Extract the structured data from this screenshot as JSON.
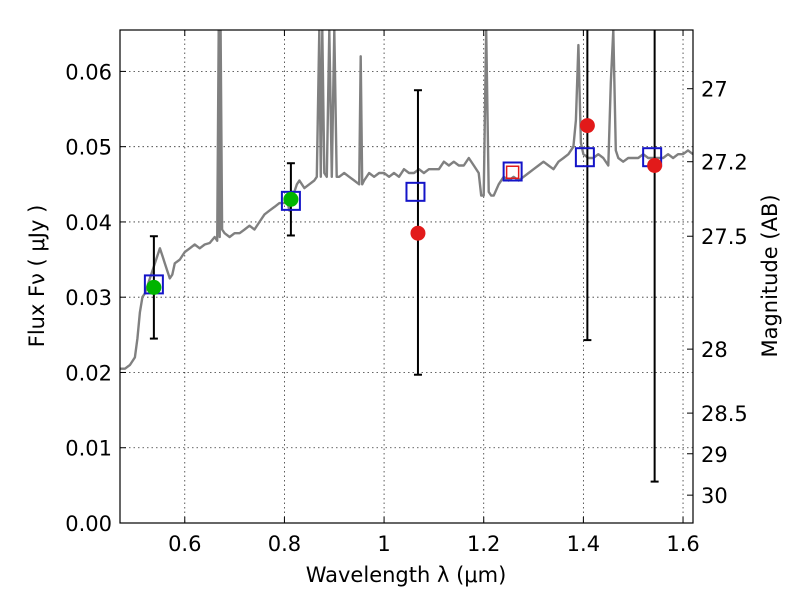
{
  "chart_data": {
    "type": "scatter",
    "title": "",
    "xlabel": "Wavelength  λ (μm)",
    "ylabel": "Flux  Fν  ( μJy )",
    "ylabel_right": "Magnitude (AB)",
    "xlim": [
      0.47,
      1.62
    ],
    "ylim": [
      0.0,
      0.0655
    ],
    "grid": true,
    "x_ticks": [
      0.6,
      0.8,
      1.0,
      1.2,
      1.4,
      1.6
    ],
    "x_tick_labels": [
      "0.6",
      "0.8",
      "1",
      "1.2",
      "1.4",
      "1.6"
    ],
    "y_ticks": [
      0.0,
      0.01,
      0.02,
      0.03,
      0.04,
      0.05,
      0.06
    ],
    "y_tick_labels": [
      "0.00",
      "0.01",
      "0.02",
      "0.03",
      "0.04",
      "0.05",
      "0.06"
    ],
    "right_axis": {
      "ticks_flux": [
        0.0577,
        0.048,
        0.0381,
        0.0231,
        0.0146,
        0.0092,
        0.0037
      ],
      "tick_labels": [
        "27",
        "27.2",
        "27.5",
        "28",
        "28.5",
        "29",
        "30"
      ]
    },
    "series": [
      {
        "name": "model spectrum",
        "kind": "line",
        "color": "#808080",
        "x": [
          0.47,
          0.48,
          0.49,
          0.5,
          0.505,
          0.51,
          0.515,
          0.52,
          0.525,
          0.53,
          0.535,
          0.54,
          0.545,
          0.55,
          0.555,
          0.56,
          0.565,
          0.57,
          0.575,
          0.58,
          0.59,
          0.6,
          0.61,
          0.62,
          0.63,
          0.64,
          0.65,
          0.66,
          0.665,
          0.668,
          0.67,
          0.672,
          0.675,
          0.68,
          0.69,
          0.7,
          0.71,
          0.72,
          0.73,
          0.74,
          0.75,
          0.76,
          0.77,
          0.78,
          0.79,
          0.8,
          0.805,
          0.81,
          0.815,
          0.82,
          0.825,
          0.83,
          0.84,
          0.85,
          0.86,
          0.865,
          0.87,
          0.873,
          0.876,
          0.88,
          0.885,
          0.89,
          0.895,
          0.9,
          0.905,
          0.91,
          0.92,
          0.93,
          0.94,
          0.95,
          0.953,
          0.956,
          0.96,
          0.97,
          0.98,
          0.99,
          1.0,
          1.01,
          1.02,
          1.03,
          1.04,
          1.05,
          1.06,
          1.07,
          1.08,
          1.09,
          1.1,
          1.11,
          1.12,
          1.13,
          1.14,
          1.15,
          1.16,
          1.17,
          1.18,
          1.19,
          1.195,
          1.2,
          1.205,
          1.21,
          1.215,
          1.22,
          1.23,
          1.24,
          1.25,
          1.26,
          1.27,
          1.28,
          1.29,
          1.3,
          1.31,
          1.32,
          1.33,
          1.34,
          1.35,
          1.36,
          1.37,
          1.38,
          1.385,
          1.39,
          1.395,
          1.4,
          1.41,
          1.42,
          1.43,
          1.44,
          1.45,
          1.455,
          1.46,
          1.465,
          1.47,
          1.48,
          1.49,
          1.5,
          1.51,
          1.52,
          1.53,
          1.54,
          1.55,
          1.56,
          1.57,
          1.58,
          1.59,
          1.6,
          1.61,
          1.62
        ],
        "y": [
          0.0205,
          0.0205,
          0.021,
          0.022,
          0.0245,
          0.028,
          0.03,
          0.0305,
          0.0315,
          0.0325,
          0.0335,
          0.0345,
          0.0355,
          0.0365,
          0.0355,
          0.0345,
          0.0335,
          0.0325,
          0.033,
          0.0345,
          0.035,
          0.036,
          0.0365,
          0.037,
          0.0365,
          0.037,
          0.0372,
          0.038,
          0.0375,
          0.0655,
          0.038,
          0.0655,
          0.039,
          0.0385,
          0.038,
          0.0385,
          0.0385,
          0.039,
          0.0395,
          0.039,
          0.04,
          0.041,
          0.0415,
          0.042,
          0.0425,
          0.0425,
          0.043,
          0.0415,
          0.044,
          0.044,
          0.045,
          0.0455,
          0.0445,
          0.045,
          0.0455,
          0.046,
          0.0655,
          0.046,
          0.0655,
          0.0465,
          0.046,
          0.0655,
          0.046,
          0.0655,
          0.046,
          0.046,
          0.0465,
          0.046,
          0.0455,
          0.045,
          0.062,
          0.045,
          0.0455,
          0.0465,
          0.046,
          0.0465,
          0.0465,
          0.046,
          0.0465,
          0.046,
          0.047,
          0.0465,
          0.0465,
          0.047,
          0.0465,
          0.047,
          0.047,
          0.047,
          0.048,
          0.0475,
          0.048,
          0.0475,
          0.0475,
          0.0485,
          0.0475,
          0.0465,
          0.0435,
          0.0435,
          0.0655,
          0.044,
          0.0435,
          0.0435,
          0.045,
          0.046,
          0.0455,
          0.046,
          0.0455,
          0.046,
          0.0465,
          0.047,
          0.0475,
          0.048,
          0.0475,
          0.047,
          0.048,
          0.0485,
          0.049,
          0.05,
          0.0535,
          0.0635,
          0.0505,
          0.049,
          0.0485,
          0.0485,
          0.049,
          0.0485,
          0.0475,
          0.0585,
          0.0655,
          0.0495,
          0.0485,
          0.048,
          0.0485,
          0.0485,
          0.0485,
          0.049,
          0.0485,
          0.0485,
          0.0485,
          0.0485,
          0.049,
          0.0485,
          0.049,
          0.049,
          0.0495,
          0.049
        ]
      },
      {
        "name": "green photometry",
        "kind": "points",
        "color": "#00b400",
        "x": [
          0.538,
          0.813
        ],
        "y": [
          0.0313,
          0.043
        ],
        "yerr": [
          [
            0.0068,
            0.0068
          ],
          [
            0.0048,
            0.0048
          ]
        ]
      },
      {
        "name": "red photometry",
        "kind": "points",
        "color": "#e21a1a",
        "x": [
          1.068,
          1.408,
          1.543
        ],
        "y": [
          0.0385,
          0.0528,
          0.0475
        ],
        "yerr": [
          [
            0.0188,
            0.019
          ],
          [
            0.0285,
            0.0355
          ],
          [
            0.042,
            0.0475
          ]
        ]
      },
      {
        "name": "blue model boxes",
        "kind": "open-squares",
        "color": "#1414c8",
        "x": [
          0.538,
          0.813,
          1.063,
          1.258,
          1.403,
          1.538
        ],
        "y": [
          0.0317,
          0.0428,
          0.044,
          0.0467,
          0.0486,
          0.0486
        ]
      },
      {
        "name": "red open square",
        "kind": "open-squares",
        "color": "#e21a1a",
        "x": [
          1.258
        ],
        "y": [
          0.0466
        ]
      }
    ]
  }
}
